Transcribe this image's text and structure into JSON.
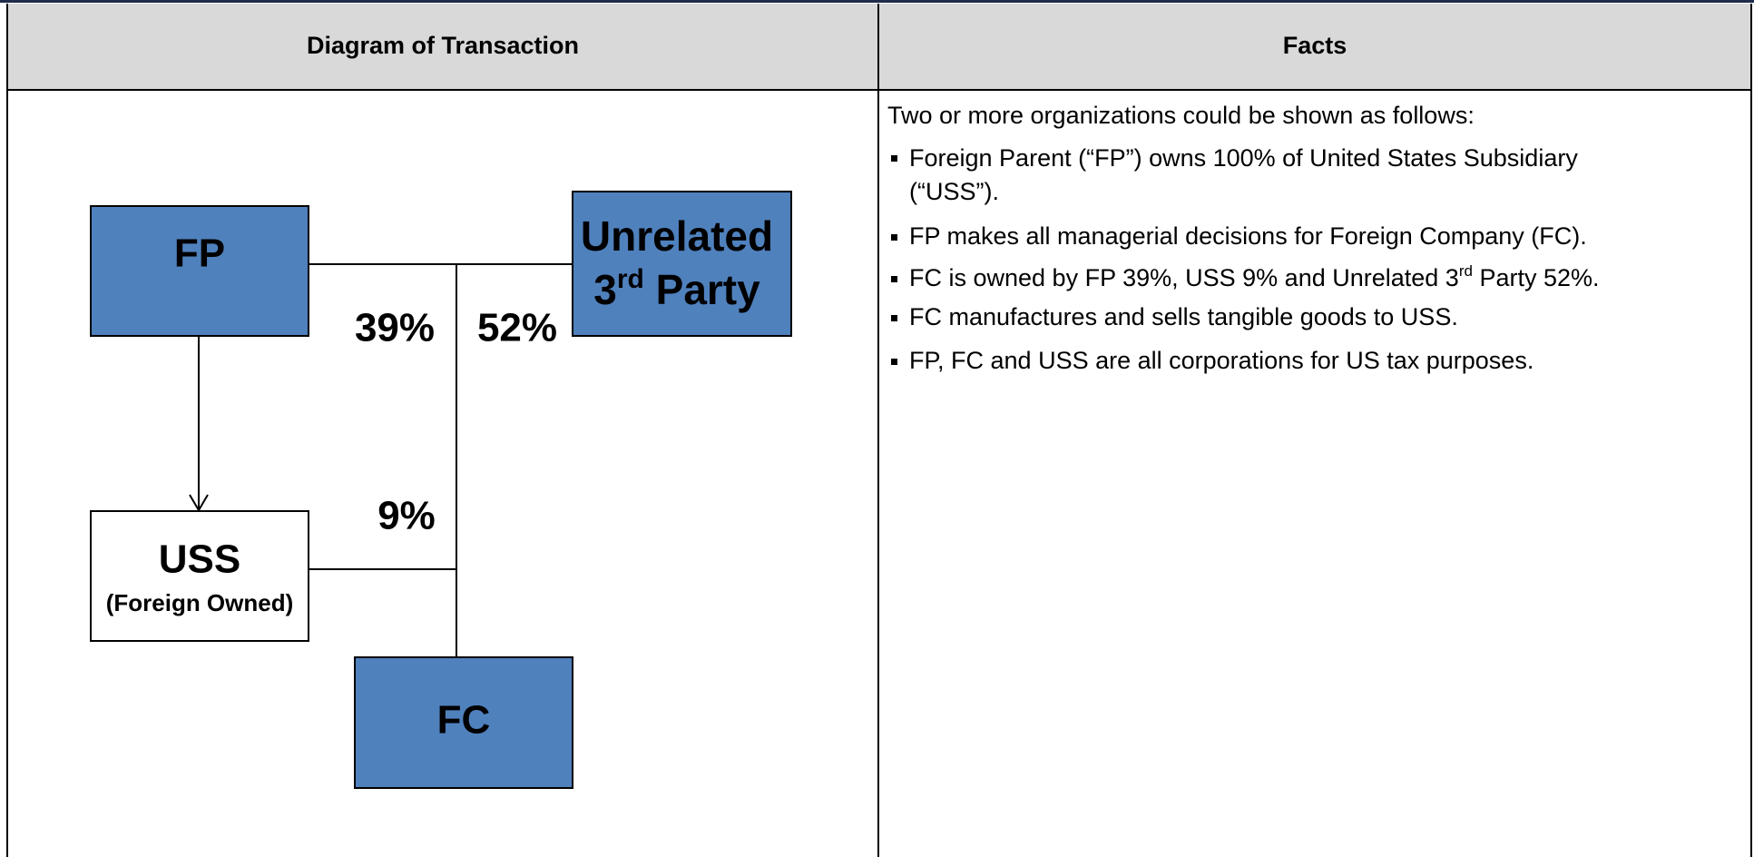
{
  "table": {
    "headers": [
      "Diagram of Transaction",
      "Facts"
    ]
  },
  "diagram": {
    "nodes": [
      {
        "label": "FP"
      },
      {
        "line1": "Unrelated",
        "line2_before": "3",
        "line2_sup": "rd",
        "line2_after": " Party"
      },
      {
        "label": "USS",
        "sublabel": "(Foreign Owned)"
      },
      {
        "label": "FC"
      }
    ],
    "edge_labels": [
      "39%",
      "52%",
      "9%"
    ]
  },
  "facts": {
    "intro": "Two or more organizations could be shown as follows:",
    "bullets": [
      [
        "Foreign Parent (“FP”) owns 100% of United States Subsidiary",
        "(“USS”)."
      ],
      [
        "FP makes all managerial decisions for Foreign Company (FC)."
      ],
      [
        "FC is owned by FP 39%, USS 9% and Unrelated 3",
        "rd",
        " Party 52%."
      ],
      [
        "FC manufactures and sells tangible goods to USS."
      ],
      [
        "FP, FC and USS are all corporations for US tax purposes."
      ]
    ]
  }
}
